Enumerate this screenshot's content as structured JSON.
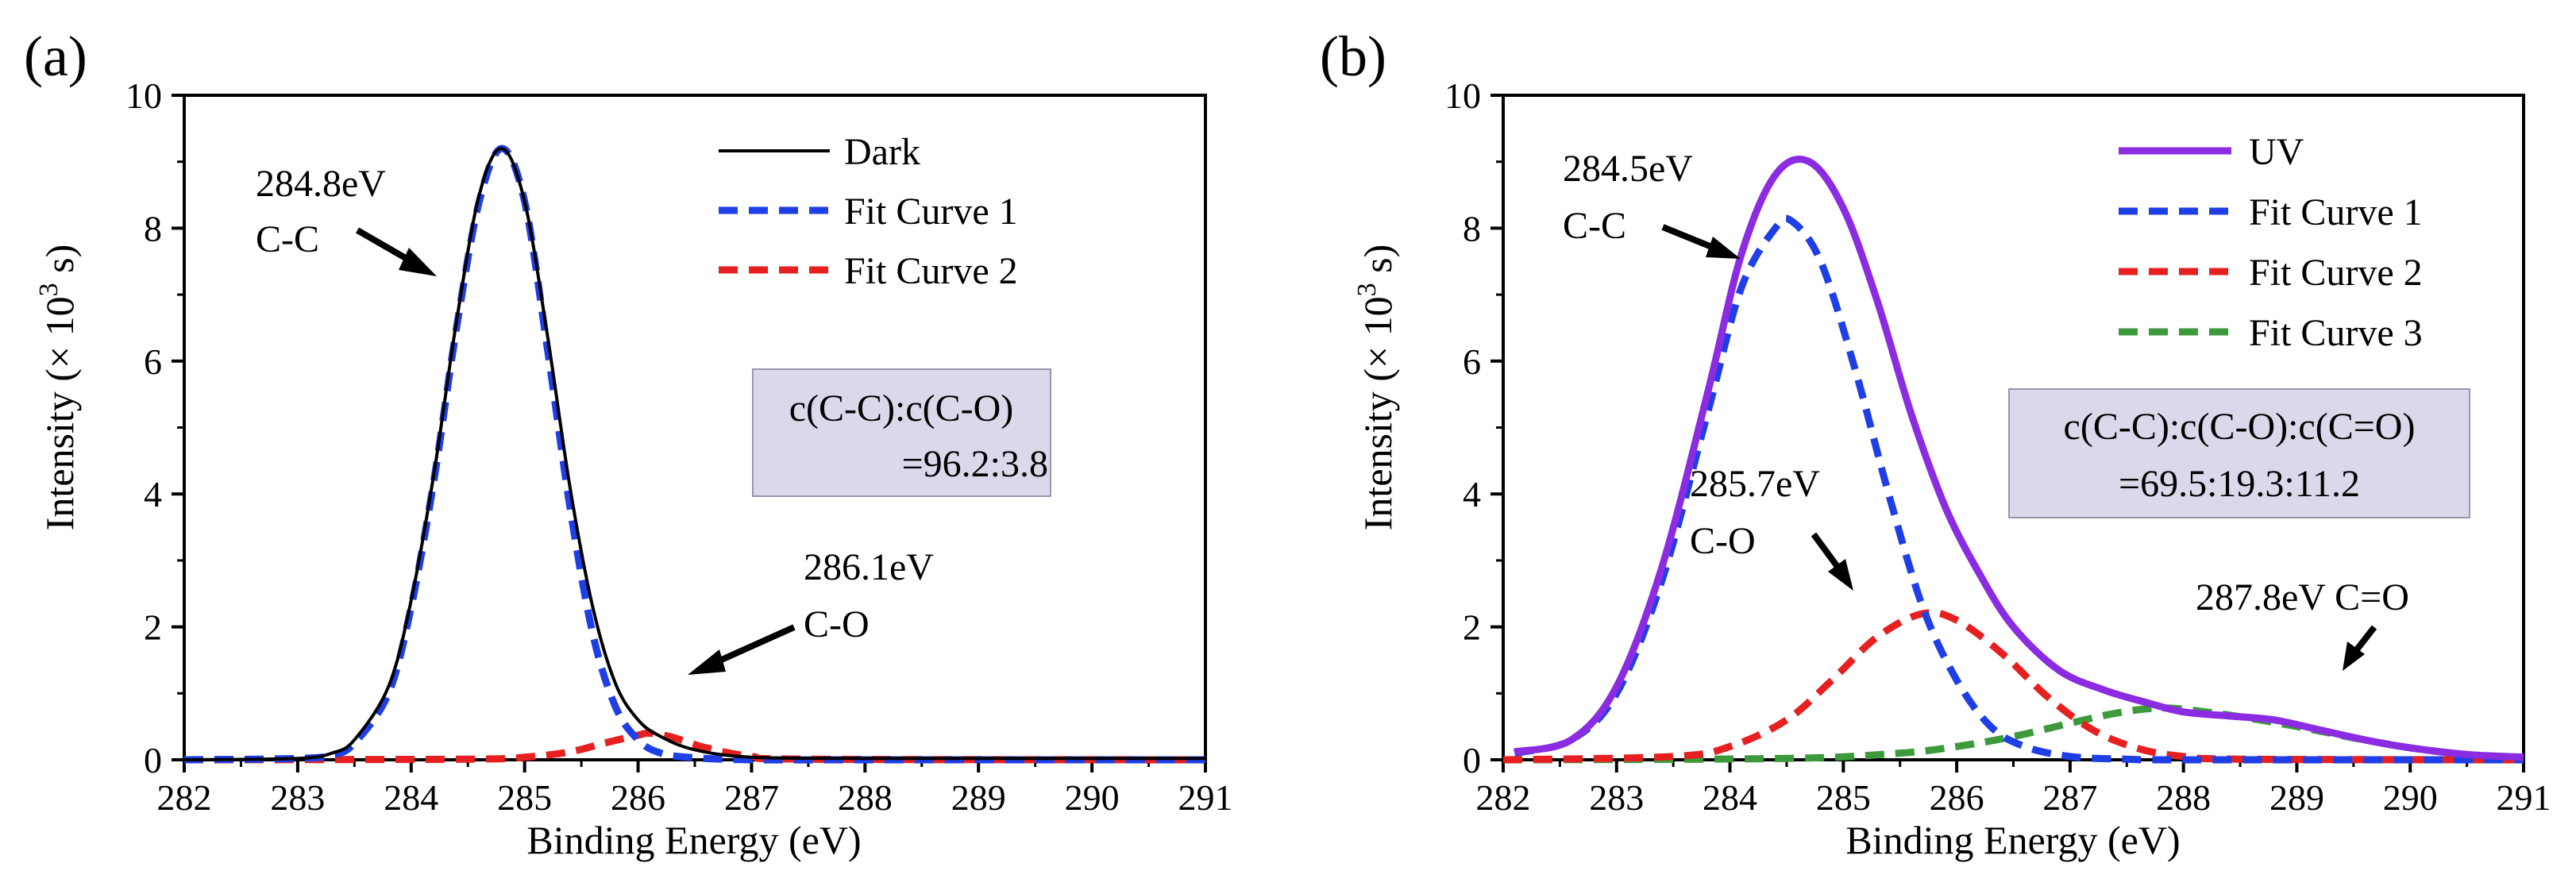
{
  "colors": {
    "dark": "#000000",
    "uv": "#8B2BE2",
    "fit1": "#1F3FE6",
    "fit2": "#E62020",
    "fit3": "#3C9A3C",
    "ratio_box_fill": "#DCD7EA",
    "ratio_box_stroke": "#9A95AE"
  },
  "chart_data": [
    {
      "panel_label": "(a)",
      "type": "line",
      "xlabel": "Binding Energy (eV)",
      "ylabel_main": "Intensity (× 10",
      "ylabel_sup": "3",
      "ylabel_tail": " s)",
      "xlim": [
        282,
        291
      ],
      "ylim": [
        0,
        10
      ],
      "xticks": [
        282,
        283,
        284,
        285,
        286,
        287,
        288,
        289,
        290,
        291
      ],
      "yticks": [
        0,
        2,
        4,
        6,
        8,
        10
      ],
      "x_tick_labels": [
        "282",
        "283",
        "284",
        "285",
        "286",
        "287",
        "288",
        "289",
        "290",
        "291"
      ],
      "y_tick_labels": [
        "0",
        "2",
        "4",
        "6",
        "8",
        "10"
      ],
      "legend_position": "top-right",
      "series": [
        {
          "name": "Dark",
          "style": "solid",
          "color_key": "dark",
          "x": [
            282,
            283,
            283.3,
            283.5,
            283.8,
            284.0,
            284.2,
            284.4,
            284.6,
            284.8,
            285.0,
            285.2,
            285.4,
            285.6,
            285.8,
            286.0,
            286.2,
            286.5,
            287.0,
            288,
            289,
            290,
            291
          ],
          "y": [
            0,
            0.02,
            0.1,
            0.3,
            1.1,
            2.4,
            4.3,
            6.6,
            8.5,
            9.2,
            8.4,
            6.4,
            4.1,
            2.3,
            1.15,
            0.6,
            0.35,
            0.15,
            0.04,
            0.02,
            0.02,
            0.02,
            0.02
          ]
        },
        {
          "name": "Fit Curve 1",
          "style": "dashed",
          "color_key": "fit1",
          "x": [
            282,
            283,
            283.3,
            283.5,
            283.8,
            284.0,
            284.2,
            284.4,
            284.6,
            284.8,
            285.0,
            285.2,
            285.4,
            285.6,
            285.8,
            286.0,
            286.2,
            286.5,
            287.0,
            288,
            291
          ],
          "y": [
            0,
            0.02,
            0.07,
            0.25,
            1.0,
            2.3,
            4.2,
            6.5,
            8.4,
            9.2,
            8.4,
            6.2,
            3.8,
            1.9,
            0.8,
            0.3,
            0.1,
            0.03,
            0,
            0,
            0
          ]
        },
        {
          "name": "Fit Curve 2",
          "style": "dashed",
          "color_key": "fit2",
          "x": [
            282,
            284.5,
            285.0,
            285.4,
            285.7,
            286.0,
            286.1,
            286.3,
            286.6,
            287.0,
            287.5,
            291
          ],
          "y": [
            0,
            0.01,
            0.04,
            0.12,
            0.25,
            0.37,
            0.4,
            0.34,
            0.18,
            0.05,
            0.01,
            0
          ]
        }
      ],
      "annotations": [
        {
          "line1": "284.8eV",
          "line2": "C-C"
        },
        {
          "line1": "286.1eV",
          "line2": "C-O"
        }
      ],
      "ratio_box": {
        "line1": "c(C-C):c(C-O)",
        "line2": "=96.2:3.8"
      }
    },
    {
      "panel_label": "(b)",
      "type": "line",
      "xlabel": "Binding Energy (eV)",
      "ylabel_main": "Intensity (× 10",
      "ylabel_sup": "3",
      "ylabel_tail": " s)",
      "xlim": [
        282,
        291
      ],
      "ylim": [
        0,
        10
      ],
      "xticks": [
        282,
        283,
        284,
        285,
        286,
        287,
        288,
        289,
        290,
        291
      ],
      "yticks": [
        0,
        2,
        4,
        6,
        8,
        10
      ],
      "x_tick_labels": [
        "282",
        "283",
        "284",
        "285",
        "286",
        "287",
        "288",
        "289",
        "290",
        "291"
      ],
      "y_tick_labels": [
        "0",
        "2",
        "4",
        "6",
        "8",
        "10"
      ],
      "legend_position": "top-right",
      "series": [
        {
          "name": "UV",
          "style": "solid",
          "color_key": "uv",
          "x": [
            282.1,
            282.6,
            283.0,
            283.4,
            283.8,
            284.1,
            284.4,
            284.7,
            285.0,
            285.3,
            285.6,
            285.9,
            286.2,
            286.5,
            286.9,
            287.3,
            287.7,
            288.0,
            288.4,
            288.8,
            289.2,
            289.6,
            290.0,
            290.5,
            291
          ],
          "y": [
            0.12,
            0.3,
            1.1,
            2.9,
            5.5,
            7.6,
            8.8,
            9.0,
            8.3,
            6.9,
            5.2,
            3.8,
            2.8,
            2.0,
            1.35,
            1.05,
            0.85,
            0.72,
            0.66,
            0.6,
            0.45,
            0.3,
            0.18,
            0.08,
            0.04
          ]
        },
        {
          "name": "Fit Curve 1",
          "style": "dashed",
          "color_key": "fit1",
          "x": [
            282.1,
            282.6,
            283.0,
            283.4,
            283.8,
            284.1,
            284.4,
            284.55,
            284.8,
            285.1,
            285.4,
            285.7,
            286.0,
            286.3,
            286.6,
            287.0,
            287.5,
            288.0,
            291
          ],
          "y": [
            0.1,
            0.3,
            1.0,
            2.7,
            5.2,
            7.1,
            8.0,
            8.1,
            7.5,
            5.9,
            4.0,
            2.3,
            1.2,
            0.5,
            0.2,
            0.05,
            0.01,
            0,
            0
          ]
        },
        {
          "name": "Fit Curve 2",
          "style": "dashed",
          "color_key": "fit2",
          "x": [
            282,
            283.5,
            284.0,
            284.5,
            284.9,
            285.3,
            285.7,
            286.0,
            286.4,
            286.8,
            287.2,
            287.6,
            288.0,
            288.5,
            291
          ],
          "y": [
            0,
            0.05,
            0.2,
            0.6,
            1.2,
            1.85,
            2.2,
            2.1,
            1.6,
            0.95,
            0.45,
            0.17,
            0.05,
            0.01,
            0
          ]
        },
        {
          "name": "Fit Curve 3",
          "style": "dashed",
          "color_key": "fit3",
          "x": [
            282,
            284.5,
            285.5,
            286.0,
            286.5,
            287.0,
            287.4,
            287.8,
            288.2,
            288.6,
            289.0,
            289.5,
            290.0,
            290.5,
            291
          ],
          "y": [
            0,
            0.02,
            0.1,
            0.2,
            0.35,
            0.55,
            0.7,
            0.78,
            0.72,
            0.62,
            0.5,
            0.33,
            0.18,
            0.08,
            0.04
          ]
        }
      ],
      "annotations": [
        {
          "line1": "284.5eV",
          "line2": "C-C"
        },
        {
          "line1": "285.7eV",
          "line2": "C-O"
        },
        {
          "line1": "287.8eV C=O",
          "line2": ""
        }
      ],
      "ratio_box": {
        "line1": "c(C-C):c(C-O):c(C=O)",
        "line2": "=69.5:19.3:11.2"
      }
    }
  ]
}
